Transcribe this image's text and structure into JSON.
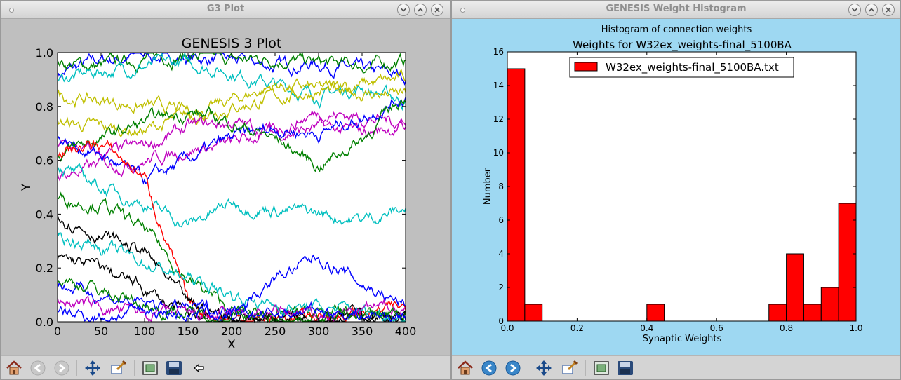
{
  "left_window": {
    "title": "G3 Plot",
    "plot_title": "GENESIS 3 Plot",
    "xlabel": "X",
    "ylabel": "Y",
    "toolbar": [
      "home-icon",
      "back-icon",
      "forward-icon",
      "pan-icon",
      "zoom-icon",
      "subplots-icon",
      "save-icon",
      "pointer-arrow-icon"
    ]
  },
  "right_window": {
    "title": "GENESIS Weight Histogram",
    "figure_title": "Histogram of connection weights",
    "toolbar": [
      "home-icon",
      "back-icon",
      "forward-icon",
      "pan-icon",
      "zoom-icon",
      "subplots-icon",
      "save-icon"
    ]
  },
  "chart_data": [
    {
      "type": "line",
      "title": "GENESIS 3 Plot",
      "xlabel": "X",
      "ylabel": "Y",
      "xlim": [
        0,
        400
      ],
      "ylim": [
        0.0,
        1.0
      ],
      "xticks": [
        "0",
        "50",
        "100",
        "150",
        "200",
        "250",
        "300",
        "350",
        "400"
      ],
      "yticks": [
        "0.0",
        "0.2",
        "0.4",
        "0.6",
        "0.8",
        "1.0"
      ],
      "grid": false,
      "colors": [
        "#0000ff",
        "#008000",
        "#ff0000",
        "#00bfbf",
        "#bf00bf",
        "#bfbf00",
        "#000000"
      ],
      "series": [
        {
          "color": "#0000ff",
          "x": [
            0,
            50,
            100,
            150,
            200,
            250,
            300,
            350,
            400
          ],
          "y": [
            0.92,
            0.97,
            0.99,
            0.98,
            0.97,
            0.95,
            0.96,
            0.93,
            0.91
          ]
        },
        {
          "color": "#008000",
          "x": [
            0,
            50,
            100,
            150,
            200,
            250,
            300,
            350,
            400
          ],
          "y": [
            0.96,
            0.95,
            0.98,
            0.99,
            0.97,
            0.98,
            0.96,
            0.95,
            0.97
          ]
        },
        {
          "color": "#00bfbf",
          "x": [
            0,
            50,
            100,
            150,
            200,
            250,
            300,
            350,
            400
          ],
          "y": [
            0.9,
            0.93,
            0.95,
            0.96,
            0.93,
            0.88,
            0.84,
            0.87,
            0.82
          ]
        },
        {
          "color": "#bfbf00",
          "x": [
            0,
            50,
            100,
            150,
            200,
            250,
            300,
            350,
            400
          ],
          "y": [
            0.74,
            0.72,
            0.71,
            0.76,
            0.82,
            0.88,
            0.86,
            0.88,
            0.9
          ]
        },
        {
          "color": "#bfbf00",
          "x": [
            0,
            50,
            100,
            150,
            200,
            250,
            300,
            350,
            400
          ],
          "y": [
            0.84,
            0.82,
            0.8,
            0.78,
            0.8,
            0.83,
            0.86,
            0.85,
            0.84
          ]
        },
        {
          "color": "#bf00bf",
          "x": [
            0,
            50,
            100,
            150,
            200,
            250,
            300,
            350,
            400
          ],
          "y": [
            0.66,
            0.62,
            0.65,
            0.72,
            0.74,
            0.7,
            0.72,
            0.7,
            0.73
          ]
        },
        {
          "color": "#bf00bf",
          "x": [
            0,
            50,
            100,
            150,
            200,
            250,
            300,
            350,
            400
          ],
          "y": [
            0.54,
            0.58,
            0.6,
            0.64,
            0.66,
            0.71,
            0.78,
            0.76,
            0.74
          ]
        },
        {
          "color": "#0000ff",
          "x": [
            0,
            50,
            100,
            150,
            200,
            250,
            300,
            350,
            400
          ],
          "y": [
            0.68,
            0.62,
            0.52,
            0.6,
            0.68,
            0.72,
            0.7,
            0.76,
            0.84
          ]
        },
        {
          "color": "#008000",
          "x": [
            0,
            50,
            100,
            150,
            200,
            250,
            300,
            350,
            400
          ],
          "y": [
            0.62,
            0.68,
            0.74,
            0.78,
            0.74,
            0.68,
            0.58,
            0.68,
            0.84
          ]
        },
        {
          "color": "#00bfbf",
          "x": [
            0,
            50,
            100,
            150,
            200,
            250,
            300,
            350,
            400
          ],
          "y": [
            0.58,
            0.5,
            0.44,
            0.36,
            0.44,
            0.42,
            0.4,
            0.38,
            0.42
          ]
        },
        {
          "color": "#008000",
          "x": [
            0,
            50,
            100,
            150,
            200,
            250,
            300,
            350,
            400
          ],
          "y": [
            0.46,
            0.44,
            0.34,
            0.16,
            0.04,
            0.02,
            0.03,
            0.02,
            0.02
          ]
        },
        {
          "color": "#ff0000",
          "x": [
            0,
            50,
            100,
            150,
            200,
            250,
            300,
            350,
            400
          ],
          "y": [
            0.63,
            0.66,
            0.54,
            0.06,
            0.01,
            0.01,
            0.02,
            0.03,
            0.05
          ]
        },
        {
          "color": "#000000",
          "x": [
            0,
            50,
            100,
            150,
            200,
            250,
            300,
            350,
            400
          ],
          "y": [
            0.4,
            0.32,
            0.26,
            0.06,
            0.02,
            0.01,
            0.03,
            0.02,
            0.01
          ]
        },
        {
          "color": "#000000",
          "x": [
            0,
            50,
            100,
            150,
            200,
            250,
            300,
            350,
            400
          ],
          "y": [
            0.24,
            0.2,
            0.12,
            0.02,
            0.01,
            0.02,
            0.01,
            0.02,
            0.01
          ]
        },
        {
          "color": "#00bfbf",
          "x": [
            0,
            50,
            100,
            150,
            200,
            250,
            300,
            350,
            400
          ],
          "y": [
            0.32,
            0.28,
            0.22,
            0.16,
            0.1,
            0.06,
            0.05,
            0.04,
            0.02
          ]
        },
        {
          "color": "#0000ff",
          "x": [
            0,
            50,
            100,
            150,
            200,
            250,
            300,
            350,
            400
          ],
          "y": [
            0.14,
            0.1,
            0.06,
            0.05,
            0.04,
            0.16,
            0.24,
            0.14,
            0.06
          ]
        },
        {
          "color": "#bf00bf",
          "x": [
            0,
            50,
            100,
            150,
            200,
            250,
            300,
            350,
            400
          ],
          "y": [
            0.08,
            0.05,
            0.03,
            0.02,
            0.02,
            0.03,
            0.02,
            0.04,
            0.06
          ]
        },
        {
          "color": "#008000",
          "x": [
            0,
            50,
            100,
            150,
            200,
            250,
            300,
            350,
            400
          ],
          "y": [
            0.16,
            0.12,
            0.06,
            0.03,
            0.02,
            0.01,
            0.02,
            0.02,
            0.03
          ]
        },
        {
          "color": "#0000ff",
          "x": [
            0,
            50,
            100,
            150,
            200,
            250,
            300,
            350,
            400
          ],
          "y": [
            0.03,
            0.02,
            0.04,
            0.03,
            0.02,
            0.03,
            0.04,
            0.03,
            0.02
          ]
        }
      ]
    },
    {
      "type": "bar",
      "title": "Weights for W32ex_weights-final_5100BA",
      "xlabel": "Synaptic Weights",
      "ylabel": "Number",
      "xlim": [
        0.0,
        1.0
      ],
      "ylim": [
        0,
        16
      ],
      "xticks": [
        "0.0",
        "0.2",
        "0.4",
        "0.6",
        "0.8",
        "1.0"
      ],
      "yticks": [
        "0",
        "2",
        "4",
        "6",
        "8",
        "10",
        "12",
        "14",
        "16"
      ],
      "bin_width": 0.05,
      "bins": [
        0.0,
        0.05,
        0.4,
        0.75,
        0.8,
        0.85,
        0.9,
        0.95
      ],
      "values": [
        15,
        1,
        1,
        1,
        4,
        1,
        2,
        7
      ],
      "bar_color": "#ff0000",
      "legend": [
        "W32ex_weights-final_5100BA.txt"
      ],
      "legend_position": "top-right",
      "grid": false
    }
  ]
}
